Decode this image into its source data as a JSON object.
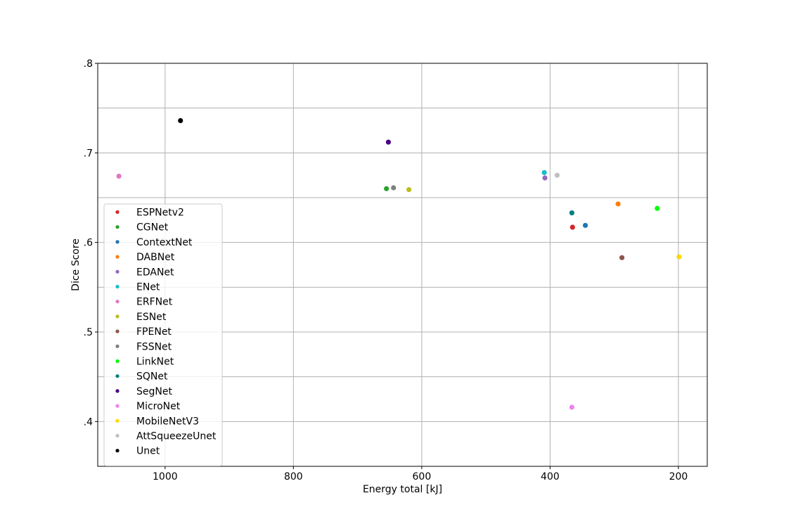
{
  "chart_data": {
    "type": "scatter",
    "title": "",
    "xlabel": "Energy total [kJ]",
    "ylabel": "Dice Score",
    "x_inverted": true,
    "xlim": [
      1105,
      155
    ],
    "ylim": [
      0.35,
      0.8
    ],
    "x_ticks": [
      1000,
      800,
      600,
      400,
      200
    ],
    "x_tick_labels": [
      "1000",
      "800",
      "600",
      "400",
      "200"
    ],
    "y_ticks": [
      0.4,
      0.5,
      0.6,
      0.7,
      0.8
    ],
    "y_tick_labels": [
      ".4",
      ".5",
      ".6",
      ".7",
      ".8"
    ],
    "grid": true,
    "legend_position": "lower-left",
    "series": [
      {
        "name": "ESPNetv2",
        "color": "#d62728",
        "x": 365,
        "y": 0.617
      },
      {
        "name": "CGNet",
        "color": "#2ca02c",
        "x": 655,
        "y": 0.66
      },
      {
        "name": "ContextNet",
        "color": "#1f77b4",
        "x": 345,
        "y": 0.619
      },
      {
        "name": "DABNet",
        "color": "#ff7f0e",
        "x": 294,
        "y": 0.643
      },
      {
        "name": "EDANet",
        "color": "#9467bd",
        "x": 408,
        "y": 0.672
      },
      {
        "name": "ENet",
        "color": "#17becf",
        "x": 409,
        "y": 0.678
      },
      {
        "name": "ERFNet",
        "color": "#e377c2",
        "x": 1072,
        "y": 0.674
      },
      {
        "name": "ESNet",
        "color": "#bcbd22",
        "x": 620,
        "y": 0.659
      },
      {
        "name": "FPENet",
        "color": "#8c564b",
        "x": 288,
        "y": 0.583
      },
      {
        "name": "FSSNet",
        "color": "#7f7f7f",
        "x": 644,
        "y": 0.661
      },
      {
        "name": "LinkNet",
        "color": "#00ff00",
        "x": 233,
        "y": 0.638
      },
      {
        "name": "SQNet",
        "color": "#008080",
        "x": 366,
        "y": 0.633
      },
      {
        "name": "SegNet",
        "color": "#4b0082",
        "x": 652,
        "y": 0.712
      },
      {
        "name": "MicroNet",
        "color": "#ee82ee",
        "x": 366,
        "y": 0.416
      },
      {
        "name": "MobileNetV3",
        "color": "#ffd700",
        "x": 199,
        "y": 0.584
      },
      {
        "name": "AttSqueezeUnet",
        "color": "#c0c0c0",
        "x": 389,
        "y": 0.675
      },
      {
        "name": "Unet",
        "color": "#000000",
        "x": 976,
        "y": 0.736
      }
    ]
  }
}
